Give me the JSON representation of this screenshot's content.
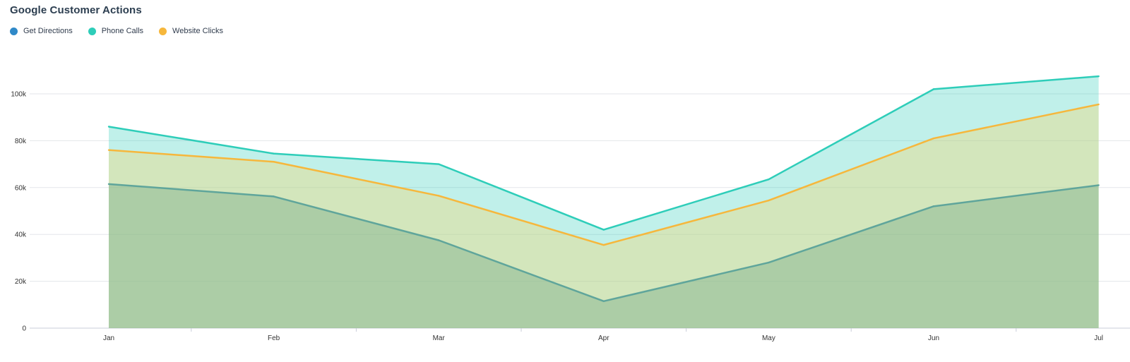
{
  "chart_data": {
    "type": "area",
    "title": "Google Customer Actions",
    "categories": [
      "Jan",
      "Feb",
      "Mar",
      "Apr",
      "May",
      "Jun",
      "Jul"
    ],
    "series": [
      {
        "name": "Get Directions",
        "values": [
          61500,
          56200,
          37500,
          11500,
          28000,
          52000,
          61000
        ],
        "color": "#2f89c8"
      },
      {
        "name": "Phone Calls",
        "values": [
          86000,
          74500,
          70000,
          42000,
          63500,
          102000,
          107500
        ],
        "color": "#2ecdb9"
      },
      {
        "name": "Website Clicks",
        "values": [
          76000,
          71000,
          56500,
          35500,
          54500,
          81000,
          95500
        ],
        "color": "#f6b73c"
      }
    ],
    "ylim": [
      0,
      100000
    ],
    "yticks": [
      "0",
      "20k",
      "40k",
      "60k",
      "80k",
      "100k"
    ],
    "xlabel": "",
    "ylabel": "",
    "grid": true,
    "legend": "top-left"
  }
}
